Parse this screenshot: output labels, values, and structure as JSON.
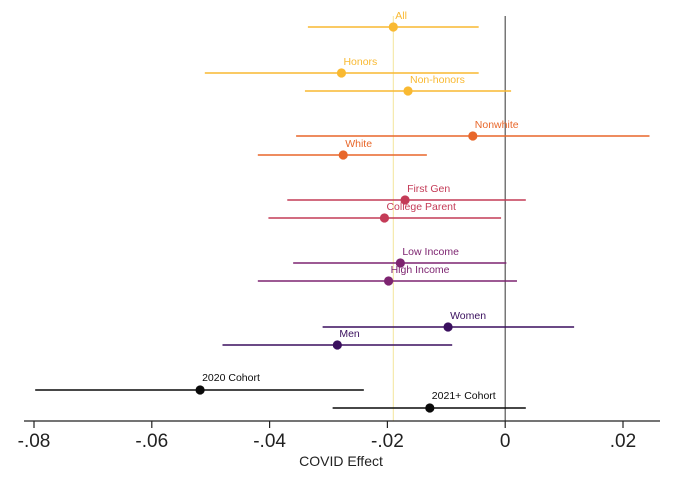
{
  "chart_data": {
    "type": "scatter",
    "subtype": "coefficient-plot",
    "title": "",
    "xlabel": "COVID Effect",
    "ylabel": "",
    "xlim": [
      -0.08,
      0.025
    ],
    "x_ticks": [
      -0.08,
      -0.06,
      -0.04,
      -0.02,
      0,
      0.02
    ],
    "x_tick_labels": [
      "-.08",
      "-.06",
      "-.04",
      "-.02",
      "0",
      ".02"
    ],
    "grid": false,
    "reference_lines": [
      {
        "x": 0,
        "color": "#555555",
        "label": ""
      },
      {
        "x": -0.019,
        "color": "#f3e59a",
        "label": ""
      }
    ],
    "series": [
      {
        "label": "All",
        "estimate": -0.019,
        "ci_low": -0.0335,
        "ci_high": -0.0045,
        "color": "#f9b931"
      },
      {
        "label": "Honors",
        "estimate": -0.0278,
        "ci_low": -0.051,
        "ci_high": -0.0045,
        "color": "#f9b931"
      },
      {
        "label": "Non-honors",
        "estimate": -0.0165,
        "ci_low": -0.034,
        "ci_high": 0.001,
        "color": "#f9b931"
      },
      {
        "label": "Nonwhite",
        "estimate": -0.0055,
        "ci_low": -0.0355,
        "ci_high": 0.0245,
        "color": "#e8672a"
      },
      {
        "label": "White",
        "estimate": -0.0275,
        "ci_low": -0.042,
        "ci_high": -0.0133,
        "color": "#e8672a"
      },
      {
        "label": "First Gen",
        "estimate": -0.017,
        "ci_low": -0.037,
        "ci_high": 0.0035,
        "color": "#c43b57"
      },
      {
        "label": "College Parent",
        "estimate": -0.0205,
        "ci_low": -0.0402,
        "ci_high": -0.0007,
        "color": "#c43b57"
      },
      {
        "label": "Low Income",
        "estimate": -0.0178,
        "ci_low": -0.036,
        "ci_high": 0.0002,
        "color": "#7d2470"
      },
      {
        "label": "High Income",
        "estimate": -0.0198,
        "ci_low": -0.042,
        "ci_high": 0.002,
        "color": "#7d2470"
      },
      {
        "label": "Women",
        "estimate": -0.0097,
        "ci_low": -0.031,
        "ci_high": 0.0117,
        "color": "#3a0f5e"
      },
      {
        "label": "Men",
        "estimate": -0.0285,
        "ci_low": -0.048,
        "ci_high": -0.009,
        "color": "#3a0f5e"
      },
      {
        "label": "2020 Cohort",
        "estimate": -0.0518,
        "ci_low": -0.0798,
        "ci_high": -0.024,
        "color": "#0a0a0a"
      },
      {
        "label": "2021+ Cohort",
        "estimate": -0.0128,
        "ci_low": -0.0293,
        "ci_high": 0.0035,
        "color": "#0a0a0a"
      }
    ]
  }
}
